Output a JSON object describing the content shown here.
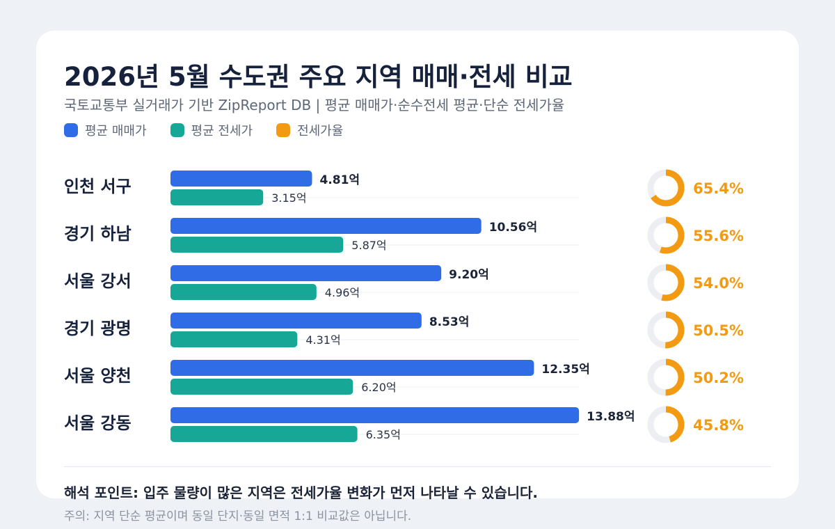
{
  "title": "2026년 5월 수도권 주요 지역 매매·전세 비교",
  "subtitle": "국토교통부 실거래가 기반 ZipReport DB | 평균 매매가·순수전세 평균·단순 전세가율",
  "insight": "해석 포인트: 입주 물량이 많은 지역은 전세가율 변화가 먼저 나타날 수 있습니다.",
  "note": "주의: 지역 단순 평균이며 동일 단지·동일 면적 1:1 비교값은 아닙니다.",
  "colors": {
    "sale": "#2f6ce5",
    "jeonse": "#17a796",
    "ratio": "#f29a12",
    "ring_track": "#eceef2",
    "title": "#16213b"
  },
  "chart_data": {
    "type": "bar",
    "orientation": "horizontal",
    "unit": "억",
    "value_axis_max": 15,
    "categories": [
      "인천 서구",
      "경기 하남",
      "서울 강서",
      "경기 광명",
      "서울 양천",
      "서울 강동"
    ],
    "series": [
      {
        "name": "평균 매매가",
        "values": [
          4.81,
          10.56,
          9.2,
          8.53,
          12.35,
          13.88
        ],
        "labels": [
          "4.81억",
          "10.56억",
          "9.20억",
          "8.53억",
          "12.35억",
          "13.88억"
        ]
      },
      {
        "name": "평균 전세가",
        "values": [
          3.15,
          5.87,
          4.96,
          4.31,
          6.2,
          6.35
        ],
        "labels": [
          "3.15억",
          "5.87억",
          "4.96억",
          "4.31억",
          "6.20억",
          "6.35억"
        ]
      },
      {
        "name": "전세가율",
        "type": "donut",
        "values": [
          65.4,
          55.6,
          54.0,
          50.5,
          50.2,
          45.8
        ],
        "labels": [
          "65.4%",
          "55.6%",
          "54.0%",
          "50.5%",
          "50.2%",
          "45.8%"
        ]
      }
    ],
    "legend_position": "top-left"
  }
}
